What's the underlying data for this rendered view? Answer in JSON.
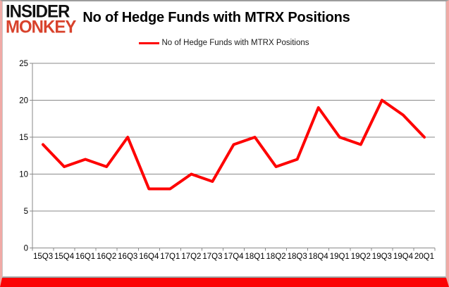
{
  "logo": {
    "line1": "INSIDER",
    "line2": "MONKEY"
  },
  "header": {
    "title": "No of Hedge Funds with MTRX Positions"
  },
  "legend": {
    "label": "No of Hedge Funds with MTRX Positions"
  },
  "colors": {
    "line_red": "#fe0000",
    "logo_red": "#d8422c",
    "bottom_bar_red": "#fb0305",
    "pink_border": "#f0aaa6",
    "grid_gray": "#8a8a8a",
    "axis_gray": "#8a8a8a"
  },
  "chart_data": {
    "type": "line",
    "title": "No of Hedge Funds with MTRX Positions",
    "series_name": "No of Hedge Funds with MTRX Positions",
    "categories": [
      "15Q3",
      "15Q4",
      "16Q1",
      "16Q2",
      "16Q3",
      "16Q4",
      "17Q1",
      "17Q2",
      "17Q3",
      "17Q4",
      "18Q1",
      "18Q2",
      "18Q3",
      "18Q4",
      "19Q1",
      "19Q2",
      "19Q3",
      "19Q4",
      "20Q1"
    ],
    "values": [
      14,
      11,
      12,
      11,
      15,
      8,
      8,
      10,
      9,
      14,
      15,
      11,
      12,
      19,
      15,
      14,
      20,
      18,
      15
    ],
    "xlabel": "",
    "ylabel": "",
    "ylim": [
      0,
      25
    ],
    "yticks": [
      0,
      5,
      10,
      15,
      20,
      25
    ],
    "grid": true,
    "legend_position": "top",
    "markers": false
  }
}
